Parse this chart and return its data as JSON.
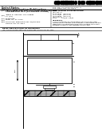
{
  "background_color": "#ffffff",
  "header_line1": "United States",
  "header_line2": "Patent Application Publication",
  "header_right1": "Pub. No.: US 2013/0277066 A1",
  "header_right2": "Pub. Date: Oct. 17, 2013",
  "field_labels": [
    "(54)",
    "(76)",
    "(21)",
    "(22)",
    "(60)"
  ],
  "title_text": "SELF-CONTAINED SELF-ACTUATED MODULAR FIRE\nSUPPRESSION UNIT (AUTOMATED SYSTEM)",
  "inventor_text": "Jeffrey D. Harrison, Los Angeles,\nCA (US)",
  "appl_text": "13/869,556",
  "filed_text": "Filed: Apr. 24, 2013",
  "related_text": "Provisional application No. 61/637,966,\nfiled on Apr. 24, 2012.",
  "classif_header": "PUBLICATION CLASSIFICATION",
  "int_cl_label": "(51) Int. Cl.",
  "int_cl_entries": [
    "A62C 35/02   (2006.01)",
    "A62C 37/00   (2006.01)",
    "A62C 99/00   (2010.01)"
  ],
  "us_cl_label": "(52) U.S. Cl.",
  "us_cl_text": "USPC ........ 169/16; 169/15",
  "abstract_header": "ABSTRACT",
  "abstract_text": "A self-contained self-actuated modular fire suppression system comprising a storage tank, nozzle assembly, trigger mechanism and support structure designed to be mounted in modular fashion and actuated automatically upon detection of fire or heat.",
  "desc_header": "BRIEF DESCRIPTION OF DRAWINGS",
  "related_apps": "Provisional application No. 61/637,966, filed on Apr. 24, 2012."
}
